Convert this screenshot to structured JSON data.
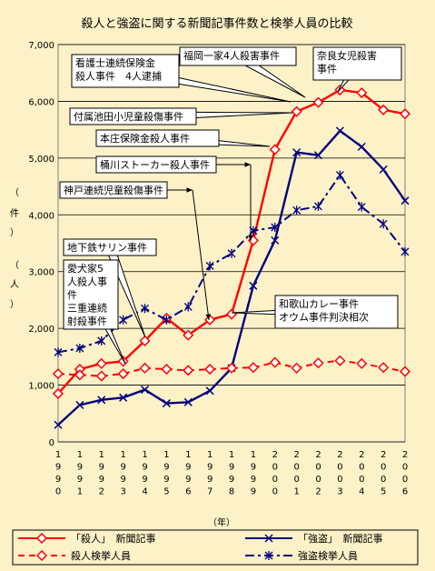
{
  "chart_data": {
    "type": "line",
    "title": "殺人と強盗に関する新聞記事件数と検挙人員の比較",
    "xlabel": "（年）",
    "ylabel": [
      "（",
      "件",
      "）",
      "（",
      "人",
      "）"
    ],
    "x": [
      "1990",
      "1991",
      "1992",
      "1993",
      "1994",
      "1995",
      "1996",
      "1997",
      "1998",
      "1999",
      "2000",
      "2001",
      "2002",
      "2003",
      "2004",
      "2005",
      "2006"
    ],
    "ylim": [
      0,
      7000
    ],
    "yticks": [
      "0",
      "1,000",
      "2,000",
      "3,000",
      "4,000",
      "5,000",
      "6,000",
      "7,000"
    ],
    "grid": true,
    "legend_position": "bottom",
    "series": [
      {
        "name": "「殺人」　新聞記事",
        "color": "#ff0000",
        "style": "solid",
        "marker": "diamond",
        "values": [
          850,
          1280,
          1380,
          1420,
          1780,
          2180,
          1880,
          2150,
          2250,
          3550,
          5150,
          5820,
          5980,
          6200,
          6150,
          5850,
          5780
        ]
      },
      {
        "name": "「強盗」　新聞記事",
        "color": "#000080",
        "style": "solid",
        "marker": "x",
        "values": [
          300,
          650,
          740,
          780,
          920,
          680,
          700,
          900,
          1300,
          2750,
          3550,
          5100,
          5050,
          5480,
          5200,
          4800,
          4250
        ]
      },
      {
        "name": "殺人検挙人員",
        "color": "#ff0000",
        "style": "dash",
        "marker": "diamond",
        "values": [
          1200,
          1180,
          1160,
          1200,
          1300,
          1280,
          1260,
          1280,
          1300,
          1310,
          1400,
          1300,
          1390,
          1430,
          1380,
          1310,
          1240
        ]
      },
      {
        "name": "強盗検挙人員",
        "color": "#000080",
        "style": "dashdot",
        "marker": "star",
        "values": [
          1580,
          1650,
          1780,
          2150,
          2350,
          2150,
          2380,
          3100,
          3320,
          3720,
          3780,
          4080,
          4150,
          4700,
          4140,
          3840,
          3350
        ]
      }
    ],
    "annotations": [
      {
        "lines": [
          "福岡一家4人殺害事件"
        ],
        "x_index": 12,
        "series": 0
      },
      {
        "lines": [
          "奈良女児殺害",
          "事件"
        ],
        "x_index": 13,
        "series": 0
      },
      {
        "lines": [
          "看護士連続保険金",
          "殺人事件　4人逮捕"
        ],
        "x_index": 12,
        "series": 0
      },
      {
        "lines": [
          "付属池田小児童殺傷事件"
        ],
        "x_index": 11,
        "series": 0
      },
      {
        "lines": [
          "本庄保険金殺人事件"
        ],
        "x_index": 10,
        "series": 0
      },
      {
        "lines": [
          "桶川ストーカー殺人事件"
        ],
        "x_index": 9,
        "series": 0
      },
      {
        "lines": [
          "神戸連続児童殺傷事件"
        ],
        "x_index": 7,
        "series": 0
      },
      {
        "lines": [
          "地下鉄サリン事件"
        ],
        "x_index": 4,
        "series": 0
      },
      {
        "lines": [
          "愛犬家5",
          "人殺人事",
          "件",
          "三重連続",
          "射殺事件"
        ],
        "x_index": 3,
        "series": 0
      },
      {
        "lines": [
          "和歌山カレー事件",
          "オウム事件判決相次"
        ],
        "x_index": 8,
        "series": 0
      }
    ]
  }
}
